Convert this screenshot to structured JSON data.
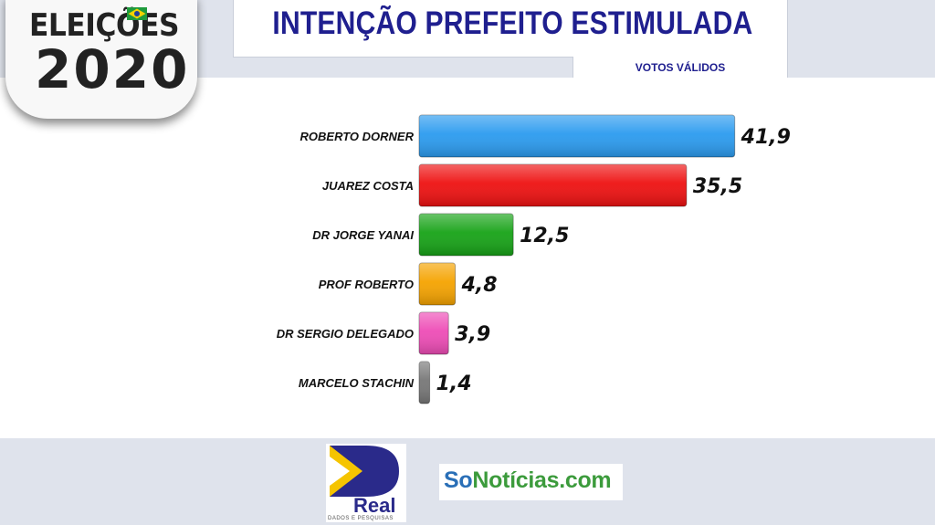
{
  "badge": {
    "line1": "ELEIÇÕES",
    "line2": "2020"
  },
  "header": {
    "title": "INTENÇÃO PREFEITO ESTIMULADA",
    "subtitle": "VOTOS VÁLIDOS"
  },
  "chart_data": {
    "type": "bar",
    "orientation": "horizontal",
    "categories": [
      "ROBERTO DORNER",
      "JUAREZ COSTA",
      "DR JORGE YANAI",
      "PROF ROBERTO",
      "DR SERGIO DELEGADO",
      "MARCELO STACHIN"
    ],
    "values": [
      41.9,
      35.5,
      12.5,
      4.8,
      3.9,
      1.4
    ],
    "value_labels": [
      "41,9",
      "35,5",
      "12,5",
      "4,8",
      "3,9",
      "1,4"
    ],
    "colors": [
      "#2b9bef",
      "#ee1111",
      "#17a317",
      "#f5a300",
      "#ee4cb6",
      "#777777"
    ],
    "title": "INTENÇÃO PREFEITO ESTIMULADA",
    "xlabel": "",
    "ylabel": "",
    "xlim": [
      0,
      45
    ],
    "grid": false,
    "legend": "none"
  },
  "footer": {
    "real_logo_text": "Real",
    "real_logo_subtext": "DADOS E PESQUISAS",
    "sonoticias_so": "So",
    "sonoticias_rest": "Notícias.com"
  }
}
